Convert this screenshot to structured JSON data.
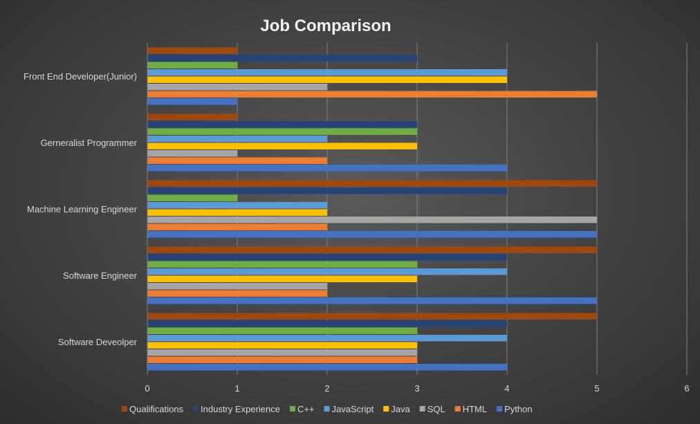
{
  "chart_data": {
    "type": "bar",
    "orientation": "horizontal",
    "title": "Job Comparison",
    "xlabel": "",
    "ylabel": "",
    "xlim": [
      0,
      6
    ],
    "x_ticks": [
      "0",
      "1",
      "2",
      "3",
      "4",
      "5",
      "6"
    ],
    "grid": "vertical",
    "legend_position": "bottom",
    "categories": [
      "Software Deveolper",
      "Software Engineer",
      "Machine Learning Engineer",
      "Gerneralist Programmer",
      "Front End Developer(Junior)"
    ],
    "series": [
      {
        "name": "Python",
        "color": "#4472c4",
        "values": [
          4,
          5,
          5,
          4,
          1
        ]
      },
      {
        "name": "HTML",
        "color": "#ed7d31",
        "values": [
          3,
          2,
          2,
          2,
          5
        ]
      },
      {
        "name": "SQL",
        "color": "#a5a5a5",
        "values": [
          3,
          2,
          5,
          1,
          2
        ]
      },
      {
        "name": "Java",
        "color": "#ffc000",
        "values": [
          3,
          3,
          2,
          3,
          4
        ]
      },
      {
        "name": "JavaScript",
        "color": "#5b9bd5",
        "values": [
          4,
          4,
          2,
          2,
          4
        ]
      },
      {
        "name": "C++",
        "color": "#70ad47",
        "values": [
          3,
          3,
          1,
          3,
          1
        ]
      },
      {
        "name": "Industry Experience",
        "color": "#264478",
        "values": [
          4,
          4,
          4,
          3,
          3
        ]
      },
      {
        "name": "Qualifications",
        "color": "#9e480e",
        "values": [
          5,
          5,
          5,
          1,
          1
        ]
      }
    ],
    "colors": {
      "text": "#d9d9d9",
      "title": "#f2f2f2",
      "grid": "#7f7f7f"
    }
  }
}
